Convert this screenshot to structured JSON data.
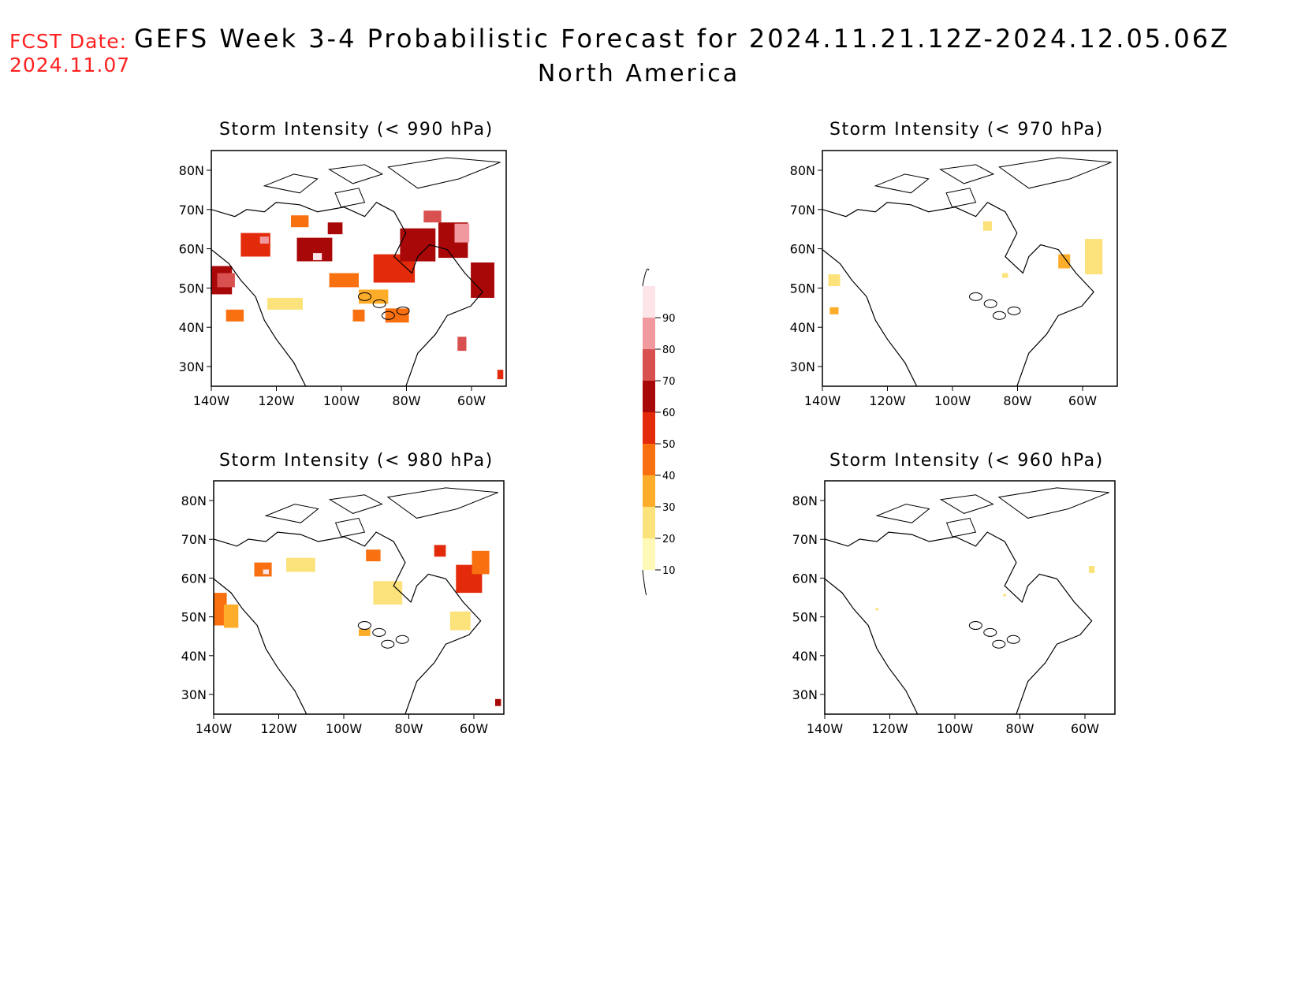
{
  "header": {
    "fcst_label": "FCST Date:",
    "fcst_date": "2024.11.07",
    "title": "GEFS Week 3-4 Probabilistic Forecast for 2024.11.21.12Z-2024.12.05.06Z",
    "region": "North America"
  },
  "lat_labels": [
    "80N",
    "70N",
    "60N",
    "50N",
    "40N",
    "30N"
  ],
  "lon_labels": [
    "140W",
    "120W",
    "100W",
    "80W",
    "60W"
  ],
  "panels": [
    {
      "title": "Storm Intensity (< 990 hPa)"
    },
    {
      "title": "Storm Intensity (< 970 hPa)"
    },
    {
      "title": "Storm Intensity (< 980 hPa)"
    },
    {
      "title": "Storm Intensity (< 960 hPa)"
    }
  ],
  "colorbar": {
    "levels": [
      "10",
      "20",
      "30",
      "40",
      "50",
      "60",
      "70",
      "80",
      "90"
    ],
    "colors": [
      "#fff9b8",
      "#fce27a",
      "#fdad2a",
      "#f97010",
      "#e32a0a",
      "#a90808",
      "#d85050",
      "#f09aa0",
      "#fde4e8"
    ]
  },
  "map_style": {
    "coast_color": "#000000",
    "background": "#ffffff"
  }
}
